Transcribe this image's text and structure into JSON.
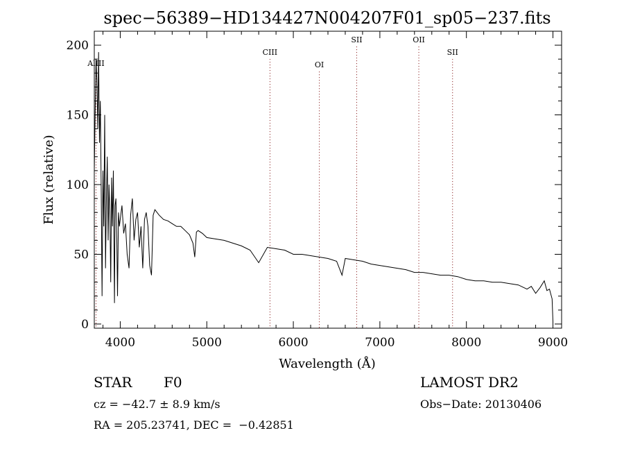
{
  "colors": {
    "background": "#ffffff",
    "foreground": "#000000",
    "spectrum_line": "#000000",
    "marker_line": "#7a0000"
  },
  "labels": {
    "object_class": "STAR",
    "subclass": "F0",
    "survey": "LAMOST DR2",
    "redshift_line": "cz = −42.7 ± 8.9 km/s",
    "obs_date": "Obs−Date: 20130406",
    "coordinates": "RA = 205.23741, DEC =  −0.42851"
  },
  "chart_data": {
    "type": "line",
    "title": "spec−56389−HD134427N004207F01_sp05−237.fits",
    "xlabel": "Wavelength (Å)",
    "ylabel": "Flux (relative)",
    "xlim": [
      3700,
      9100
    ],
    "ylim": [
      -3,
      210
    ],
    "x_ticks": [
      4000,
      5000,
      6000,
      7000,
      8000,
      9000
    ],
    "y_ticks": [
      0,
      50,
      100,
      150,
      200
    ],
    "grid": false,
    "series": [
      {
        "x": [
          3700,
          3710,
          3720,
          3730,
          3740,
          3750,
          3760,
          3770,
          3780,
          3790,
          3800,
          3810,
          3820,
          3830,
          3840,
          3850,
          3860,
          3870,
          3880,
          3890,
          3900,
          3910,
          3920,
          3933,
          3940,
          3950,
          3960,
          3968,
          3980,
          3990,
          4000,
          4020,
          4040,
          4060,
          4080,
          4101,
          4120,
          4140,
          4160,
          4180,
          4200,
          4220,
          4240,
          4260,
          4280,
          4300,
          4320,
          4340,
          4361,
          4380,
          4400,
          4450,
          4500,
          4550,
          4600,
          4650,
          4700,
          4750,
          4800,
          4840,
          4861,
          4880,
          4900,
          4950,
          5000,
          5100,
          5200,
          5300,
          5400,
          5500,
          5600,
          5700,
          5800,
          5900,
          6000,
          6100,
          6200,
          6300,
          6400,
          6500,
          6563,
          6600,
          6700,
          6800,
          6900,
          7000,
          7100,
          7200,
          7300,
          7400,
          7500,
          7600,
          7700,
          7800,
          7900,
          8000,
          8100,
          8200,
          8300,
          8400,
          8500,
          8600,
          8700,
          8750,
          8800,
          8850,
          8900,
          8930,
          8960,
          8990,
          9000
        ],
        "y": [
          110,
          150,
          190,
          175,
          140,
          195,
          130,
          160,
          95,
          20,
          110,
          70,
          150,
          40,
          90,
          120,
          60,
          100,
          80,
          30,
          105,
          70,
          110,
          15,
          85,
          90,
          60,
          20,
          80,
          70,
          75,
          85,
          65,
          72,
          50,
          40,
          78,
          90,
          60,
          75,
          80,
          55,
          70,
          40,
          75,
          80,
          70,
          42,
          35,
          78,
          82,
          78,
          75,
          74,
          72,
          70,
          70,
          67,
          64,
          58,
          48,
          66,
          67,
          65,
          62,
          61,
          60,
          58,
          56,
          53,
          44,
          55,
          54,
          53,
          50,
          50,
          49,
          48,
          47,
          45,
          35,
          47,
          46,
          45,
          43,
          42,
          41,
          40,
          39,
          37,
          37,
          36,
          35,
          35,
          34,
          32,
          31,
          31,
          30,
          30,
          29,
          28,
          25,
          27,
          22,
          26,
          31,
          24,
          25,
          18,
          2
        ]
      }
    ],
    "line_markers": [
      {
        "name": "AlIII",
        "x": 3720,
        "label_y": 185
      },
      {
        "name": "CIII",
        "x": 5730,
        "label_y": 193
      },
      {
        "name": "OI",
        "x": 6300,
        "label_y": 184
      },
      {
        "name": "SII",
        "x": 6732,
        "label_y": 202
      },
      {
        "name": "OII",
        "x": 7450,
        "label_y": 202
      },
      {
        "name": "SII",
        "x": 7840,
        "label_y": 193
      }
    ]
  }
}
